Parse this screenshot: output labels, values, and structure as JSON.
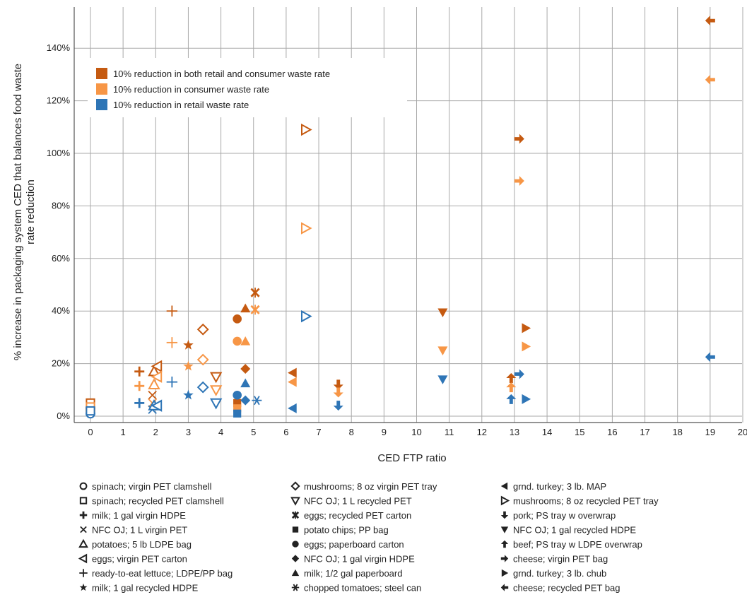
{
  "chart_data": {
    "type": "scatter",
    "xlabel": "CED FTP ratio",
    "ylabel": "% increase in packaging system CED that balances food waste rate reduction",
    "xlim": [
      -0.5,
      20
    ],
    "ylim": [
      -3,
      162
    ],
    "x_ticks": [
      0,
      1,
      2,
      3,
      4,
      5,
      6,
      7,
      8,
      9,
      10,
      11,
      12,
      13,
      14,
      15,
      16,
      17,
      18,
      19,
      20
    ],
    "x_tick_labels": [
      "0",
      "1",
      "2",
      "3",
      "4",
      "5",
      "6",
      "7",
      "8",
      "9",
      "10",
      "11",
      "12",
      "13",
      "14",
      "15",
      "16",
      "17",
      "18",
      "19",
      "20"
    ],
    "y_ticks": [
      0,
      20,
      40,
      60,
      80,
      100,
      120,
      140,
      160
    ],
    "y_tick_labels": [
      "0%",
      "20%",
      "40%",
      "60%",
      "80%",
      "100%",
      "120%",
      "140%",
      "160%"
    ],
    "grid": true,
    "legend_placement": "top-left",
    "series": [
      {
        "name": "10% reduction in both retail and consumer waste rate",
        "color": "#c55a11"
      },
      {
        "name": "10% reduction in consumer waste rate",
        "color": "#f79646"
      },
      {
        "name": "10% reduction in retail waste rate",
        "color": "#2e75b6"
      }
    ],
    "products": [
      {
        "label": "spinach; virgin PET clamshell",
        "marker": "circle-open",
        "glyph": "○"
      },
      {
        "label": "spinach; recycled PET clamshell",
        "marker": "square-open",
        "glyph": "□"
      },
      {
        "label": "milk; 1 gal virgin HDPE",
        "marker": "plus-bold",
        "glyph": "✚"
      },
      {
        "label": "NFC OJ; 1 L virgin PET",
        "marker": "x",
        "glyph": "×"
      },
      {
        "label": "potatoes; 5 lb LDPE bag",
        "marker": "triangle-up-open",
        "glyph": "△"
      },
      {
        "label": "eggs; virgin PET carton",
        "marker": "triangle-left-open",
        "glyph": "◁"
      },
      {
        "label": "ready-to-eat lettuce; LDPE/PP bag",
        "marker": "plus",
        "glyph": "+"
      },
      {
        "label": "milk; 1 gal recycled HDPE",
        "marker": "star",
        "glyph": "★"
      },
      {
        "label": "mushrooms; 8 oz virgin PET tray",
        "marker": "diamond-open",
        "glyph": "◇"
      },
      {
        "label": "NFC OJ; 1 L recycled PET",
        "marker": "triangle-down-open",
        "glyph": "▽"
      },
      {
        "label": "eggs; recycled PET carton",
        "marker": "asterisk-x",
        "glyph": "✖"
      },
      {
        "label": "potato chips; PP bag",
        "marker": "square",
        "glyph": "■"
      },
      {
        "label": "eggs; paperboard carton",
        "marker": "circle",
        "glyph": "●"
      },
      {
        "label": "NFC OJ; 1 gal virgin HDPE",
        "marker": "diamond",
        "glyph": "◆"
      },
      {
        "label": "milk; 1/2 gal paperboard",
        "marker": "triangle-up",
        "glyph": "▲"
      },
      {
        "label": "chopped tomatoes; steel can",
        "marker": "asterisk",
        "glyph": "✳"
      },
      {
        "label": "grnd. turkey; 3 lb. MAP",
        "marker": "triangle-left",
        "glyph": "◄"
      },
      {
        "label": "mushrooms; 8 oz recycled PET tray",
        "marker": "triangle-right-open",
        "glyph": "▷"
      },
      {
        "label": "pork; PS tray w overwrap",
        "marker": "arrow-down",
        "glyph": "🡇"
      },
      {
        "label": "NFC OJ; 1 gal recycled HDPE",
        "marker": "triangle-down",
        "glyph": "▼"
      },
      {
        "label": "beef; PS tray w LDPE overwrap",
        "marker": "arrow-up",
        "glyph": "🡅"
      },
      {
        "label": "cheese; virgin PET bag",
        "marker": "arrow-right",
        "glyph": "➜"
      },
      {
        "label": "grnd. turkey; 3 lb. chub",
        "marker": "triangle-right",
        "glyph": "►"
      },
      {
        "label": "cheese; recycled PET bag",
        "marker": "arrow-left",
        "glyph": "🡄"
      }
    ],
    "points": [
      {
        "product": 0,
        "series": 0,
        "x": 0,
        "y": 3
      },
      {
        "product": 0,
        "series": 1,
        "x": 0,
        "y": 2
      },
      {
        "product": 0,
        "series": 2,
        "x": 0,
        "y": 1
      },
      {
        "product": 1,
        "series": 0,
        "x": 0,
        "y": 5
      },
      {
        "product": 1,
        "series": 1,
        "x": 0,
        "y": 3.5
      },
      {
        "product": 1,
        "series": 2,
        "x": 0,
        "y": 2
      },
      {
        "product": 2,
        "series": 0,
        "x": 1.5,
        "y": 17
      },
      {
        "product": 2,
        "series": 1,
        "x": 1.5,
        "y": 11.5
      },
      {
        "product": 2,
        "series": 2,
        "x": 1.5,
        "y": 5
      },
      {
        "product": 3,
        "series": 0,
        "x": 1.9,
        "y": 8
      },
      {
        "product": 3,
        "series": 1,
        "x": 1.9,
        "y": 5
      },
      {
        "product": 3,
        "series": 2,
        "x": 1.9,
        "y": 2.5
      },
      {
        "product": 4,
        "series": 0,
        "x": 1.95,
        "y": 17
      },
      {
        "product": 4,
        "series": 1,
        "x": 1.95,
        "y": 12
      },
      {
        "product": 4,
        "series": 2,
        "x": 1.95,
        "y": 4
      },
      {
        "product": 5,
        "series": 0,
        "x": 2.05,
        "y": 19
      },
      {
        "product": 5,
        "series": 1,
        "x": 2.05,
        "y": 15
      },
      {
        "product": 5,
        "series": 2,
        "x": 2.05,
        "y": 4
      },
      {
        "product": 6,
        "series": 0,
        "x": 2.5,
        "y": 40
      },
      {
        "product": 6,
        "series": 1,
        "x": 2.5,
        "y": 28
      },
      {
        "product": 6,
        "series": 2,
        "x": 2.5,
        "y": 13
      },
      {
        "product": 7,
        "series": 0,
        "x": 3,
        "y": 27
      },
      {
        "product": 7,
        "series": 1,
        "x": 3,
        "y": 19
      },
      {
        "product": 7,
        "series": 2,
        "x": 3,
        "y": 8
      },
      {
        "product": 8,
        "series": 0,
        "x": 3.45,
        "y": 33
      },
      {
        "product": 8,
        "series": 1,
        "x": 3.45,
        "y": 21.5
      },
      {
        "product": 8,
        "series": 2,
        "x": 3.45,
        "y": 11
      },
      {
        "product": 9,
        "series": 0,
        "x": 3.85,
        "y": 15
      },
      {
        "product": 9,
        "series": 1,
        "x": 3.85,
        "y": 10
      },
      {
        "product": 9,
        "series": 2,
        "x": 3.85,
        "y": 5
      },
      {
        "product": 10,
        "series": 0,
        "x": 5.05,
        "y": 47
      },
      {
        "product": 10,
        "series": 1,
        "x": 5.05,
        "y": 40.5
      },
      {
        "product": 11,
        "series": 0,
        "x": 4.5,
        "y": 5
      },
      {
        "product": 11,
        "series": 1,
        "x": 4.5,
        "y": 3
      },
      {
        "product": 11,
        "series": 2,
        "x": 4.5,
        "y": 1
      },
      {
        "product": 12,
        "series": 0,
        "x": 4.5,
        "y": 37
      },
      {
        "product": 12,
        "series": 1,
        "x": 4.5,
        "y": 28.5
      },
      {
        "product": 12,
        "series": 2,
        "x": 4.5,
        "y": 8
      },
      {
        "product": 13,
        "series": 0,
        "x": 4.75,
        "y": 18
      },
      {
        "product": 13,
        "series": 2,
        "x": 4.75,
        "y": 6
      },
      {
        "product": 14,
        "series": 0,
        "x": 4.75,
        "y": 41
      },
      {
        "product": 14,
        "series": 1,
        "x": 4.75,
        "y": 28.5
      },
      {
        "product": 14,
        "series": 2,
        "x": 4.75,
        "y": 12.5
      },
      {
        "product": 15,
        "series": 2,
        "x": 5.1,
        "y": 6
      },
      {
        "product": 16,
        "series": 0,
        "x": 6.2,
        "y": 16.5
      },
      {
        "product": 16,
        "series": 1,
        "x": 6.2,
        "y": 13
      },
      {
        "product": 16,
        "series": 2,
        "x": 6.2,
        "y": 3
      },
      {
        "product": 17,
        "series": 0,
        "x": 6.6,
        "y": 109
      },
      {
        "product": 17,
        "series": 1,
        "x": 6.6,
        "y": 71.5
      },
      {
        "product": 17,
        "series": 2,
        "x": 6.6,
        "y": 38
      },
      {
        "product": 18,
        "series": 0,
        "x": 7.6,
        "y": 12
      },
      {
        "product": 18,
        "series": 1,
        "x": 7.6,
        "y": 9
      },
      {
        "product": 18,
        "series": 2,
        "x": 7.6,
        "y": 4
      },
      {
        "product": 19,
        "series": 0,
        "x": 10.8,
        "y": 39.5
      },
      {
        "product": 19,
        "series": 1,
        "x": 10.8,
        "y": 25
      },
      {
        "product": 19,
        "series": 2,
        "x": 10.8,
        "y": 14
      },
      {
        "product": 20,
        "series": 0,
        "x": 12.9,
        "y": 14.5
      },
      {
        "product": 20,
        "series": 1,
        "x": 12.9,
        "y": 11
      },
      {
        "product": 20,
        "series": 2,
        "x": 12.9,
        "y": 6.5
      },
      {
        "product": 21,
        "series": 0,
        "x": 13.15,
        "y": 105.5
      },
      {
        "product": 21,
        "series": 1,
        "x": 13.15,
        "y": 89.5
      },
      {
        "product": 21,
        "series": 2,
        "x": 13.15,
        "y": 16
      },
      {
        "product": 22,
        "series": 0,
        "x": 13.35,
        "y": 33.5
      },
      {
        "product": 22,
        "series": 1,
        "x": 13.35,
        "y": 26.5
      },
      {
        "product": 22,
        "series": 2,
        "x": 13.35,
        "y": 6.5
      },
      {
        "product": 23,
        "series": 0,
        "x": 19,
        "y": 150.5
      },
      {
        "product": 23,
        "series": 1,
        "x": 19,
        "y": 128
      },
      {
        "product": 23,
        "series": 2,
        "x": 19,
        "y": 22.5
      }
    ]
  }
}
